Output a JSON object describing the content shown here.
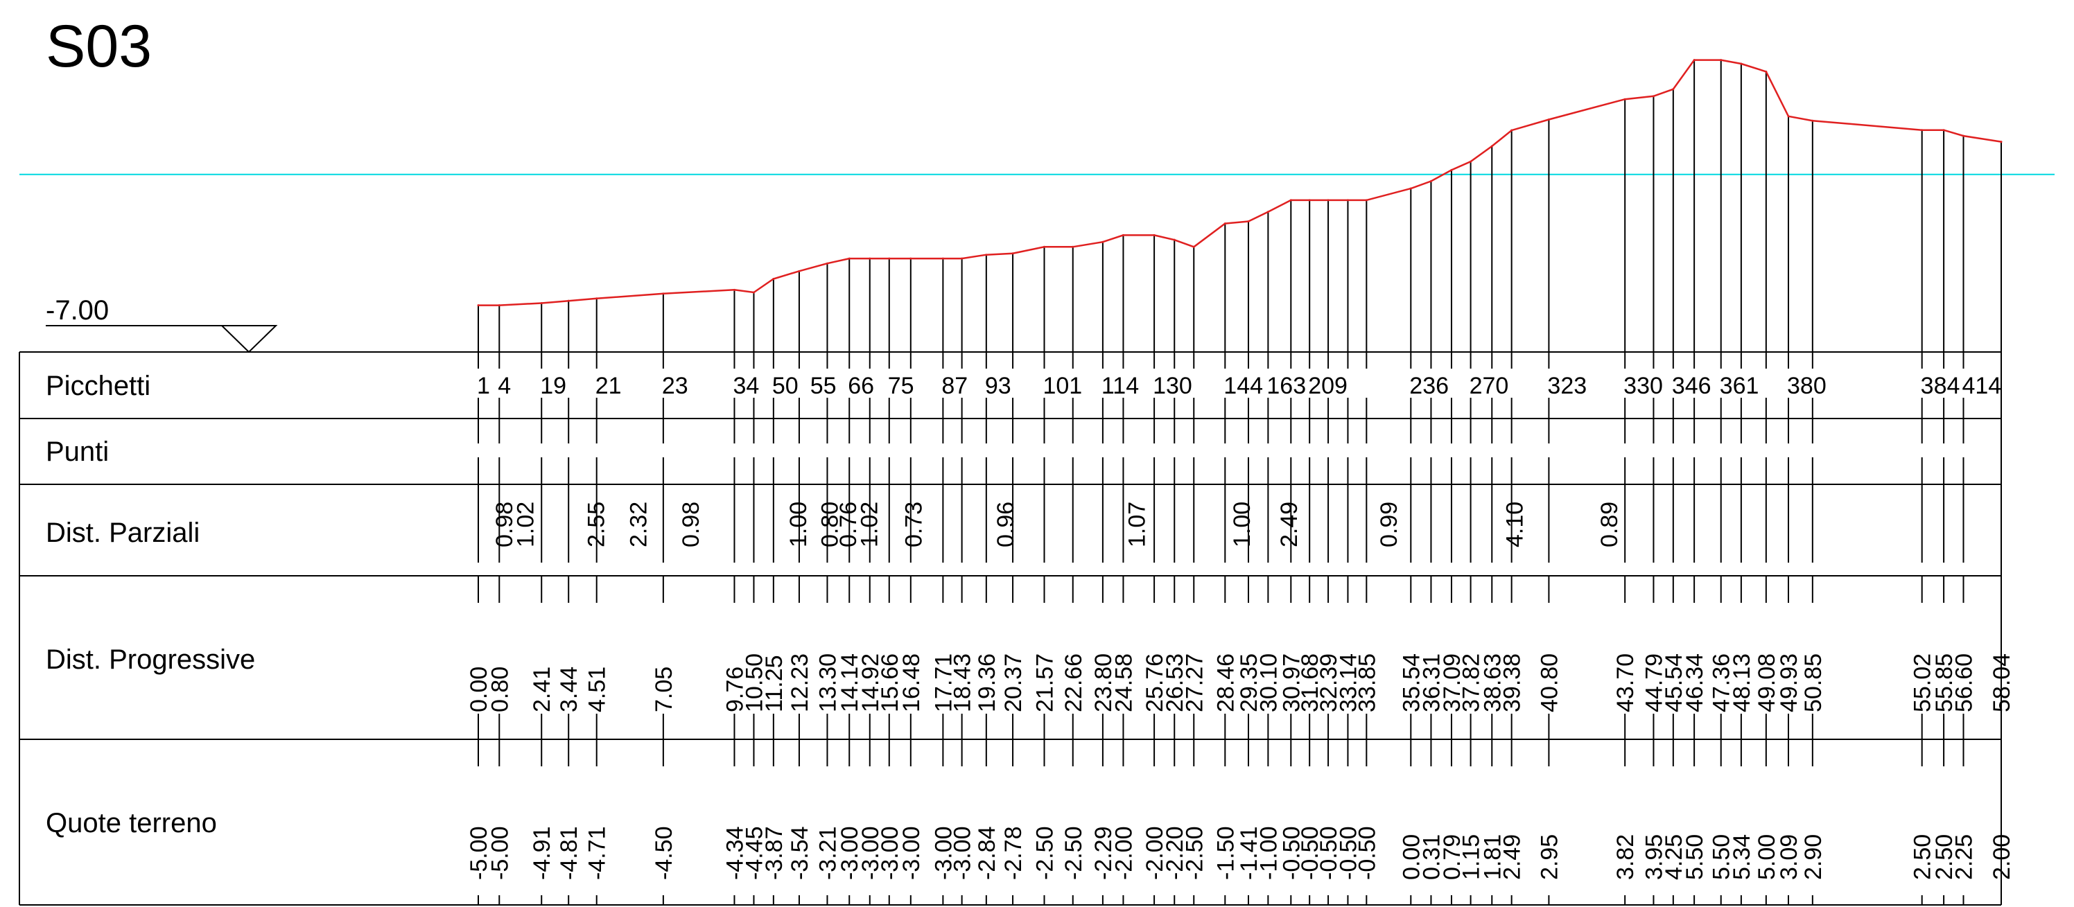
{
  "section_title": "S03",
  "datum": {
    "label": "-7.00",
    "value": -7.0
  },
  "colors": {
    "terrain_line": "#e02020",
    "reference_line": "#00d8e0",
    "ink": "#000000",
    "background": "#ffffff"
  },
  "rows": {
    "picchetti": "Picchetti",
    "punti": "Punti",
    "dist_parziali": "Dist. Parziali",
    "dist_progressive": "Dist. Progressive",
    "quote_terreno": "Quote terreno"
  },
  "chart_data": {
    "type": "line",
    "title": "S03",
    "xlabel": "Dist. Progressive",
    "ylabel": "Quote terreno",
    "datum": -7.0,
    "xlim": [
      0,
      58.04
    ],
    "ylim": [
      -7.0,
      7.0
    ],
    "reference_elevation": 0.6,
    "stations": [
      {
        "pk": "1",
        "dist": 0.0,
        "quota": -5.0
      },
      {
        "pk": "4",
        "dist": 0.8,
        "quota": -5.0
      },
      {
        "pk": "19",
        "dist": 2.41,
        "quota": -4.91
      },
      {
        "pk": "",
        "dist": 3.44,
        "quota": -4.81
      },
      {
        "pk": "21",
        "dist": 4.51,
        "quota": -4.71
      },
      {
        "pk": "23",
        "dist": 7.05,
        "quota": -4.5
      },
      {
        "pk": "34",
        "dist": 9.76,
        "quota": -4.34
      },
      {
        "pk": "",
        "dist": 10.5,
        "quota": -4.45
      },
      {
        "pk": "",
        "dist": 11.25,
        "quota": -3.87
      },
      {
        "pk": "50",
        "dist": 12.23,
        "quota": -3.54
      },
      {
        "pk": "55",
        "dist": 13.3,
        "quota": -3.21
      },
      {
        "pk": "",
        "dist": 14.14,
        "quota": -3.0
      },
      {
        "pk": "66",
        "dist": 14.92,
        "quota": -3.0
      },
      {
        "pk": "",
        "dist": 15.66,
        "quota": -3.0
      },
      {
        "pk": "75",
        "dist": 16.48,
        "quota": -3.0
      },
      {
        "pk": "87",
        "dist": 17.71,
        "quota": -3.0
      },
      {
        "pk": "",
        "dist": 18.43,
        "quota": -3.0
      },
      {
        "pk": "93",
        "dist": 19.36,
        "quota": -2.84
      },
      {
        "pk": "",
        "dist": 20.37,
        "quota": -2.78
      },
      {
        "pk": "101",
        "dist": 21.57,
        "quota": -2.5
      },
      {
        "pk": "",
        "dist": 22.66,
        "quota": -2.5
      },
      {
        "pk": "114",
        "dist": 23.8,
        "quota": -2.29
      },
      {
        "pk": "",
        "dist": 24.58,
        "quota": -2.0
      },
      {
        "pk": "130",
        "dist": 25.76,
        "quota": -2.0
      },
      {
        "pk": "",
        "dist": 26.53,
        "quota": -2.2
      },
      {
        "pk": "",
        "dist": 27.27,
        "quota": -2.5
      },
      {
        "pk": "144",
        "dist": 28.46,
        "quota": -1.5
      },
      {
        "pk": "",
        "dist": 29.35,
        "quota": -1.41
      },
      {
        "pk": "",
        "dist": 30.1,
        "quota": -1.0
      },
      {
        "pk": "163",
        "dist": 30.97,
        "quota": -0.5
      },
      {
        "pk": "",
        "dist": 31.68,
        "quota": -0.5
      },
      {
        "pk": "",
        "dist": 32.39,
        "quota": -0.5
      },
      {
        "pk": "209",
        "dist": 33.14,
        "quota": -0.5
      },
      {
        "pk": "",
        "dist": 33.85,
        "quota": -0.5
      },
      {
        "pk": "236",
        "dist": 35.54,
        "quota": 0.0
      },
      {
        "pk": "",
        "dist": 36.31,
        "quota": 0.31
      },
      {
        "pk": "",
        "dist": 37.09,
        "quota": 0.79
      },
      {
        "pk": "270",
        "dist": 37.82,
        "quota": 1.15
      },
      {
        "pk": "",
        "dist": 38.63,
        "quota": 1.81
      },
      {
        "pk": "",
        "dist": 39.38,
        "quota": 2.49
      },
      {
        "pk": "323",
        "dist": 40.8,
        "quota": 2.95
      },
      {
        "pk": "330",
        "dist": 43.7,
        "quota": 3.82
      },
      {
        "pk": "",
        "dist": 44.79,
        "quota": 3.95
      },
      {
        "pk": "346",
        "dist": 45.54,
        "quota": 4.25
      },
      {
        "pk": "",
        "dist": 46.34,
        "quota": 5.5
      },
      {
        "pk": "361",
        "dist": 47.36,
        "quota": 5.5
      },
      {
        "pk": "",
        "dist": 48.13,
        "quota": 5.34
      },
      {
        "pk": "",
        "dist": 49.08,
        "quota": 5.0
      },
      {
        "pk": "",
        "dist": 49.93,
        "quota": 3.09
      },
      {
        "pk": "380",
        "dist": 50.85,
        "quota": 2.9
      },
      {
        "pk": "384",
        "dist": 55.02,
        "quota": 2.5
      },
      {
        "pk": "",
        "dist": 55.85,
        "quota": 2.5
      },
      {
        "pk": "",
        "dist": 56.6,
        "quota": 2.25
      },
      {
        "pk": "414",
        "dist": 58.04,
        "quota": 2.0
      }
    ],
    "dist_progressive_labels": [
      "0.00",
      "0.80",
      "2.41",
      "3.44",
      "4.51",
      "7.05",
      "9.76",
      "10.50",
      "11.25",
      "12.23",
      "13.30",
      "14.14",
      "14.92",
      "15.66",
      "16.48",
      "17.71",
      "18.43",
      "19.36",
      "20.37",
      "21.57",
      "22.66",
      "23.80",
      "24.58",
      "25.76",
      "26.53",
      "27.27",
      "28.46",
      "29.35",
      "30.10",
      "30.97",
      "31.68",
      "32.39",
      "33.14",
      "33.85",
      "35.54",
      "36.31",
      "37.09",
      "37.82",
      "38.63",
      "39.38",
      "40.80",
      "43.70",
      "44.79",
      "45.54",
      "46.34",
      "47.36",
      "48.13",
      "49.08",
      "49.93",
      "50.85",
      "55.02",
      "55.85",
      "56.60",
      "58.04"
    ],
    "quote_terreno_labels": [
      "-5.00",
      "-5.00",
      "-4.91",
      "-4.81",
      "-4.71",
      "-4.50",
      "-4.34",
      "-4.45",
      "-3.87",
      "-3.54",
      "-3.21",
      "-3.00",
      "-3.00",
      "-3.00",
      "-3.00",
      "-3.00",
      "-3.00",
      "-2.84",
      "-2.78",
      "-2.50",
      "-2.50",
      "-2.29",
      "-2.00",
      "-2.00",
      "-2.20",
      "-2.50",
      "-1.50",
      "-1.41",
      "-1.00",
      "-0.50",
      "-0.50",
      "-0.50",
      "-0.50",
      "-0.50",
      "0.00",
      "0.31",
      "0.79",
      "1.15",
      "1.81",
      "2.49",
      "2.95",
      "3.82",
      "3.95",
      "4.25",
      "5.50",
      "5.50",
      "5.34",
      "5.00",
      "3.09",
      "2.90",
      "2.50",
      "2.50",
      "2.25",
      "2.00"
    ],
    "picchetti_labels": [
      {
        "label": "1",
        "dist": 0.0
      },
      {
        "label": "4",
        "dist": 0.8
      },
      {
        "label": "19",
        "dist": 2.41
      },
      {
        "label": "21",
        "dist": 4.51
      },
      {
        "label": "23",
        "dist": 7.05
      },
      {
        "label": "34",
        "dist": 9.76
      },
      {
        "label": "50",
        "dist": 11.25
      },
      {
        "label": "55",
        "dist": 12.7
      },
      {
        "label": "66",
        "dist": 14.14
      },
      {
        "label": "75",
        "dist": 15.66
      },
      {
        "label": "87",
        "dist": 17.71
      },
      {
        "label": "93",
        "dist": 19.36
      },
      {
        "label": "101",
        "dist": 21.57
      },
      {
        "label": "114",
        "dist": 23.8
      },
      {
        "label": "130",
        "dist": 25.76
      },
      {
        "label": "144",
        "dist": 28.46
      },
      {
        "label": "163",
        "dist": 30.1
      },
      {
        "label": "209",
        "dist": 31.68
      },
      {
        "label": "236",
        "dist": 35.54
      },
      {
        "label": "270",
        "dist": 37.82
      },
      {
        "label": "323",
        "dist": 40.8
      },
      {
        "label": "330",
        "dist": 43.7
      },
      {
        "label": "346",
        "dist": 45.54
      },
      {
        "label": "361",
        "dist": 47.36
      },
      {
        "label": "380",
        "dist": 49.93
      },
      {
        "label": "384",
        "dist": 55.02
      },
      {
        "label": "414",
        "dist": 56.6
      }
    ],
    "dist_parziali_labels": [
      {
        "label": "0.98",
        "dist": 1.3
      },
      {
        "label": "1.02",
        "dist": 2.1
      },
      {
        "label": "2.55",
        "dist": 4.8
      },
      {
        "label": "2.32",
        "dist": 6.4
      },
      {
        "label": "0.98",
        "dist": 8.4
      },
      {
        "label": "1.00",
        "dist": 12.5
      },
      {
        "label": "0.80",
        "dist": 13.7
      },
      {
        "label": "0.76",
        "dist": 14.4
      },
      {
        "label": "1.02",
        "dist": 15.2
      },
      {
        "label": "0.73",
        "dist": 16.9
      },
      {
        "label": "0.96",
        "dist": 20.4
      },
      {
        "label": "1.07",
        "dist": 25.4
      },
      {
        "label": "1.00",
        "dist": 29.4
      },
      {
        "label": "2.49",
        "dist": 31.2
      },
      {
        "label": "0.99",
        "dist": 35.0
      },
      {
        "label": "4.10",
        "dist": 39.8
      },
      {
        "label": "0.89",
        "dist": 43.4
      }
    ]
  }
}
